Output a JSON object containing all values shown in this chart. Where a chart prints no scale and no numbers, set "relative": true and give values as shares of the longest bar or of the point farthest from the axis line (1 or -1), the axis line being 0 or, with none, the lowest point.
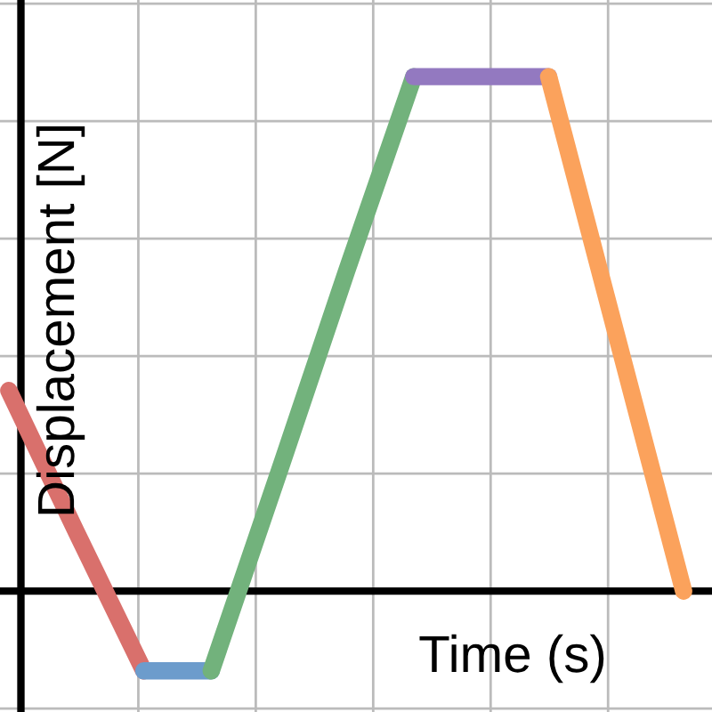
{
  "chart_data": {
    "type": "line",
    "xlabel": "Time (s)",
    "ylabel": "Displacement [N]",
    "relative": true,
    "categories": [
      null,
      null,
      null,
      null,
      null,
      null,
      null,
      null,
      null,
      null,
      null
    ],
    "series": [
      {
        "color": "#d9706c",
        "values": [
          0.39,
          0.115,
          -0.155,
          null,
          null,
          null,
          null,
          null,
          null,
          null,
          null
        ]
      },
      {
        "color": "#6c9ccc",
        "values": [
          null,
          null,
          -0.155,
          -0.155,
          null,
          null,
          null,
          null,
          null,
          null,
          null
        ]
      },
      {
        "color": "#72b27c",
        "values": [
          null,
          null,
          null,
          -0.155,
          0.23,
          0.62,
          1,
          null,
          null,
          null,
          null
        ]
      },
      {
        "color": "#9379c0",
        "values": [
          null,
          null,
          null,
          null,
          null,
          null,
          1,
          1,
          1,
          null,
          null
        ]
      },
      {
        "color": "#fba25c",
        "values": [
          null,
          null,
          null,
          null,
          null,
          null,
          null,
          null,
          1,
          0.5,
          0
        ]
      }
    ],
    "grid": true,
    "marker": "none",
    "line_style": "solid"
  }
}
